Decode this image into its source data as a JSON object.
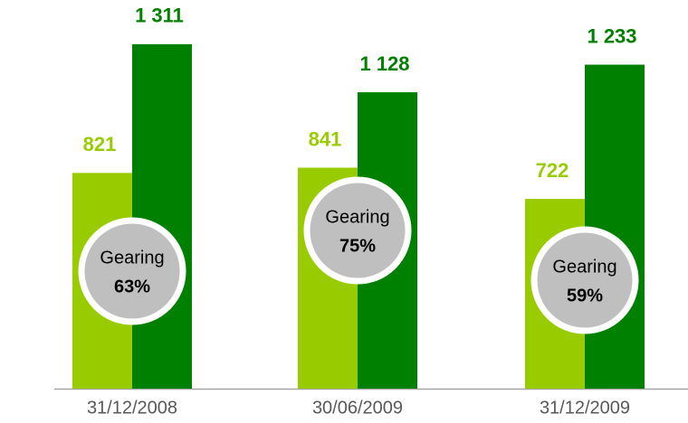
{
  "chart_data": {
    "type": "bar",
    "categories": [
      "31/12/2008",
      "30/06/2009",
      "31/12/2009"
    ],
    "series": [
      {
        "color": "#99cc00",
        "values": [
          821,
          841,
          722
        ],
        "value_labels": [
          "821",
          "841",
          "722"
        ]
      },
      {
        "color": "#008000",
        "values": [
          1311,
          1128,
          1233
        ],
        "value_labels": [
          "1 311",
          "1 128",
          "1 233"
        ]
      }
    ],
    "ylim": [
      0,
      1400
    ],
    "annotations": [
      {
        "text": "Gearing",
        "value_label": "63%"
      },
      {
        "text": "Gearing",
        "value_label": "75%"
      },
      {
        "text": "Gearing",
        "value_label": "59%"
      }
    ]
  }
}
